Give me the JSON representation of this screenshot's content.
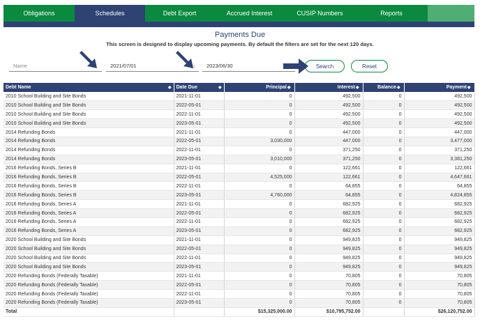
{
  "nav": {
    "tabs": [
      {
        "label": "Obligations",
        "width": 102,
        "active": false
      },
      {
        "label": "Schedules",
        "width": 101,
        "active": true
      },
      {
        "label": "Debt Export",
        "width": 99,
        "active": false
      },
      {
        "label": "Accrued Interest",
        "width": 101,
        "active": false
      },
      {
        "label": "CUSIP Numbers",
        "width": 101,
        "active": false
      },
      {
        "label": "Reports",
        "width": 104,
        "active": false
      }
    ]
  },
  "page": {
    "title": "Payments Due",
    "subtitle": "This screen is designed to display upcoming payments. By default the filters are set for the next 120 days."
  },
  "filters": {
    "name_placeholder": "Name",
    "name_value": "",
    "start_date": "2021/07/01",
    "end_date": "2023/06/30",
    "search_label": "Search",
    "reset_label": "Reset"
  },
  "table": {
    "headers": [
      "Debt Name",
      "Date Due",
      "Principal",
      "Interest",
      "Balance",
      "Payment"
    ],
    "rows": [
      [
        "2010 School Building and Site Bonds",
        "2021-11-01",
        "0",
        "492,500",
        "0",
        "492,500"
      ],
      [
        "2010 School Building and Site Bonds",
        "2022-05-01",
        "0",
        "492,500",
        "0",
        "492,500"
      ],
      [
        "2010 School Building and Site Bonds",
        "2022-11-01",
        "0",
        "492,500",
        "0",
        "492,500"
      ],
      [
        "2010 School Building and Site Bonds",
        "2023-05-01",
        "0",
        "492,500",
        "0",
        "492,500"
      ],
      [
        "2014 Refunding Bonds",
        "2021-11-01",
        "0",
        "447,000",
        "0",
        "447,000"
      ],
      [
        "2014 Refunding Bonds",
        "2022-05-01",
        "3,030,000",
        "447,000",
        "0",
        "3,477,000"
      ],
      [
        "2014 Refunding Bonds",
        "2022-11-01",
        "0",
        "371,250",
        "0",
        "371,250"
      ],
      [
        "2014 Refunding Bonds",
        "2023-05-01",
        "3,010,000",
        "371,250",
        "0",
        "3,381,250"
      ],
      [
        "2016 Refunding Bonds, Series B",
        "2021-11-01",
        "0",
        "122,661",
        "0",
        "122,661"
      ],
      [
        "2016 Refunding Bonds, Series B",
        "2022-05-01",
        "4,525,000",
        "122,661",
        "0",
        "4,647,661"
      ],
      [
        "2016 Refunding Bonds, Series B",
        "2022-11-01",
        "0",
        "64,855",
        "0",
        "64,855"
      ],
      [
        "2016 Refunding Bonds, Series B",
        "2023-05-01",
        "4,760,000",
        "64,855",
        "0",
        "4,824,855"
      ],
      [
        "2016 Refunding Bonds, Series A",
        "2021-11-01",
        "0",
        "682,925",
        "0",
        "682,925"
      ],
      [
        "2016 Refunding Bonds, Series A",
        "2022-05-01",
        "0",
        "682,925",
        "0",
        "682,925"
      ],
      [
        "2016 Refunding Bonds, Series A",
        "2022-11-01",
        "0",
        "682,925",
        "0",
        "682,925"
      ],
      [
        "2016 Refunding Bonds, Series A",
        "2023-05-01",
        "0",
        "682,925",
        "0",
        "682,925"
      ],
      [
        "2020 School Building and Site Bonds",
        "2021-11-01",
        "0",
        "949,825",
        "0",
        "949,825"
      ],
      [
        "2020 School Building and Site Bonds",
        "2022-05-01",
        "0",
        "949,825",
        "0",
        "949,825"
      ],
      [
        "2020 School Building and Site Bonds",
        "2022-11-01",
        "0",
        "949,825",
        "0",
        "949,825"
      ],
      [
        "2020 School Building and Site Bonds",
        "2023-05-01",
        "0",
        "949,825",
        "0",
        "949,825"
      ],
      [
        "2020 Refunding Bonds (Federally Taxable)",
        "2021-11-01",
        "0",
        "70,805",
        "0",
        "70,805"
      ],
      [
        "2020 Refunding Bonds (Federally Taxable)",
        "2022-05-01",
        "0",
        "70,805",
        "0",
        "70,805"
      ],
      [
        "2020 Refunding Bonds (Federally Taxable)",
        "2022-11-01",
        "0",
        "70,805",
        "0",
        "70,805"
      ],
      [
        "2020 Refunding Bonds (Federally Taxable)",
        "2023-05-01",
        "0",
        "70,805",
        "0",
        "70,805"
      ]
    ],
    "total": {
      "label": "Total",
      "principal": "$15,325,000.00",
      "interest": "$10,795,752.00",
      "payment": "$26,120,752.00"
    }
  },
  "icons": {
    "sort": "sort-icon",
    "arrow": "arrow-pointer-icon"
  },
  "colors": {
    "nav_green": "#0a8a3e",
    "nav_active": "#2e4374",
    "header_navy": "#2e4374",
    "arrow_navy": "#2e4374"
  }
}
